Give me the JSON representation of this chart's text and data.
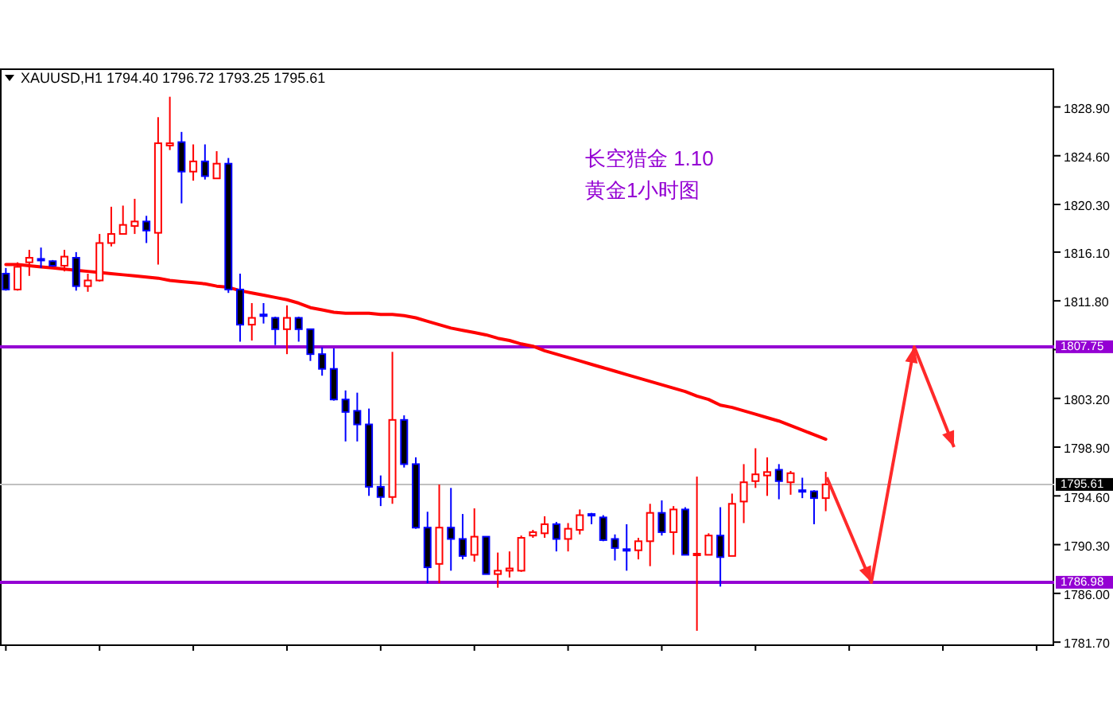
{
  "chart_data": {
    "type": "candlestick",
    "title": "XAUUSD,H1  1794.40 1796.72 1793.25 1795.61",
    "annotations": [
      "长空猎金  1.10",
      "黄金1小时图"
    ],
    "categories": [
      null,
      null,
      null,
      null,
      null,
      null,
      null,
      null,
      null,
      null,
      null,
      null,
      null,
      null,
      null,
      null,
      null,
      null,
      null,
      null,
      null,
      null,
      null,
      null,
      null,
      null,
      null,
      null,
      null,
      null,
      null,
      null,
      null,
      null,
      null,
      null,
      null,
      null,
      null,
      null,
      null,
      null,
      null,
      null,
      null,
      null,
      null,
      null,
      null,
      null,
      null,
      null,
      null,
      null,
      null,
      null,
      null,
      null,
      null,
      null,
      null,
      null,
      null,
      null,
      null,
      null,
      null,
      null,
      null,
      null,
      null,
      null,
      null,
      null,
      null,
      null,
      null,
      null,
      null,
      null,
      null,
      null,
      null,
      null,
      null,
      null,
      null,
      null,
      null,
      null
    ],
    "ohlc": [
      [
        1814.2,
        1814.7,
        1812.7,
        1812.8
      ],
      [
        1812.8,
        1815.2,
        1812.7,
        1814.8
      ],
      [
        1815.2,
        1816.3,
        1814.0,
        1815.6
      ],
      [
        1815.5,
        1816.5,
        1814.7,
        1815.4
      ],
      [
        1815.3,
        1815.4,
        1814.8,
        1814.9
      ],
      [
        1814.9,
        1816.3,
        1814.4,
        1815.7
      ],
      [
        1815.6,
        1816.1,
        1812.7,
        1813.1
      ],
      [
        1813.1,
        1814.2,
        1812.6,
        1813.6
      ],
      [
        1813.6,
        1817.7,
        1813.5,
        1816.9
      ],
      [
        1816.9,
        1820.1,
        1816.6,
        1817.7
      ],
      [
        1817.7,
        1820.2,
        1817.7,
        1818.5
      ],
      [
        1818.4,
        1820.8,
        1817.7,
        1818.8
      ],
      [
        1818.8,
        1819.3,
        1816.9,
        1818.0
      ],
      [
        1817.8,
        1828.0,
        1815.0,
        1825.7
      ],
      [
        1825.5,
        1829.8,
        1825.1,
        1825.7
      ],
      [
        1825.8,
        1826.7,
        1820.4,
        1823.2
      ],
      [
        1823.2,
        1825.6,
        1822.4,
        1824.1
      ],
      [
        1824.1,
        1825.6,
        1822.5,
        1822.8
      ],
      [
        1822.6,
        1825.0,
        1822.6,
        1823.9
      ],
      [
        1823.9,
        1824.4,
        1812.5,
        1812.8
      ],
      [
        1812.8,
        1814.2,
        1808.2,
        1809.7
      ],
      [
        1809.7,
        1811.6,
        1808.3,
        1810.3
      ],
      [
        1810.6,
        1811.6,
        1809.8,
        1810.5
      ],
      [
        1810.3,
        1810.4,
        1807.9,
        1809.3
      ],
      [
        1809.3,
        1811.4,
        1807.1,
        1810.3
      ],
      [
        1810.3,
        1810.4,
        1808.2,
        1809.3
      ],
      [
        1809.3,
        1809.3,
        1806.5,
        1807.1
      ],
      [
        1807.1,
        1807.7,
        1805.2,
        1805.8
      ],
      [
        1805.8,
        1807.6,
        1803.0,
        1803.1
      ],
      [
        1803.1,
        1803.9,
        1799.4,
        1802.0
      ],
      [
        1802.1,
        1803.7,
        1799.4,
        1800.9
      ],
      [
        1800.9,
        1802.3,
        1794.6,
        1795.4
      ],
      [
        1795.4,
        1796.4,
        1793.7,
        1794.5
      ],
      [
        1794.5,
        1807.3,
        1793.9,
        1801.3
      ],
      [
        1801.3,
        1801.7,
        1797.1,
        1797.4
      ],
      [
        1797.4,
        1798.0,
        1791.7,
        1791.8
      ],
      [
        1791.8,
        1793.2,
        1786.9,
        1788.3
      ],
      [
        1788.6,
        1795.6,
        1786.9,
        1791.8
      ],
      [
        1791.8,
        1795.3,
        1788.0,
        1790.8
      ],
      [
        1790.8,
        1793.0,
        1789.0,
        1789.3
      ],
      [
        1789.4,
        1793.5,
        1788.8,
        1791.0
      ],
      [
        1791.0,
        1791.0,
        1787.7,
        1787.7
      ],
      [
        1787.7,
        1789.6,
        1786.5,
        1788.0
      ],
      [
        1788.0,
        1789.7,
        1787.4,
        1788.2
      ],
      [
        1788.0,
        1791.1,
        1787.9,
        1790.9
      ],
      [
        1791.1,
        1791.6,
        1790.9,
        1791.4
      ],
      [
        1791.3,
        1792.8,
        1790.9,
        1792.1
      ],
      [
        1792.1,
        1792.3,
        1789.7,
        1790.8
      ],
      [
        1790.8,
        1792.2,
        1789.7,
        1791.7
      ],
      [
        1791.6,
        1793.4,
        1791.2,
        1792.9
      ],
      [
        1793.0,
        1793.1,
        1792.1,
        1792.9
      ],
      [
        1792.7,
        1792.9,
        1790.6,
        1790.7
      ],
      [
        1790.8,
        1791.2,
        1788.9,
        1790.0
      ],
      [
        1789.9,
        1792.1,
        1788.0,
        1789.8
      ],
      [
        1789.8,
        1790.9,
        1789.0,
        1790.6
      ],
      [
        1790.6,
        1793.9,
        1788.4,
        1793.1
      ],
      [
        1793.1,
        1794.2,
        1791.1,
        1791.4
      ],
      [
        1791.4,
        1793.7,
        1789.4,
        1793.4
      ],
      [
        1793.4,
        1793.6,
        1789.4,
        1789.4
      ],
      [
        1789.4,
        1796.3,
        1782.7,
        1789.5
      ],
      [
        1789.4,
        1791.3,
        1789.4,
        1791.1
      ],
      [
        1791.1,
        1793.6,
        1786.6,
        1789.2
      ],
      [
        1789.3,
        1794.8,
        1789.3,
        1793.9
      ],
      [
        1794.1,
        1797.4,
        1792.2,
        1795.8
      ],
      [
        1795.9,
        1798.8,
        1795.3,
        1796.5
      ],
      [
        1796.4,
        1798.0,
        1794.6,
        1796.7
      ],
      [
        1796.9,
        1797.4,
        1794.3,
        1795.9
      ],
      [
        1795.8,
        1796.8,
        1794.7,
        1796.6
      ],
      [
        1795.1,
        1796.2,
        1794.4,
        1795.0
      ],
      [
        1795.0,
        1795.1,
        1792.1,
        1794.4
      ],
      [
        1794.4,
        1796.72,
        1793.25,
        1795.61
      ],
      null,
      null,
      null,
      null,
      null,
      null,
      null,
      null,
      null,
      null,
      null,
      null,
      null,
      null,
      null,
      null,
      null,
      null,
      null
    ],
    "series": [
      {
        "type": "line",
        "color": "#ff0000",
        "values": [
          1815.0,
          1815.0,
          1814.9,
          1814.8,
          1814.7,
          1814.6,
          1814.5,
          1814.4,
          1814.3,
          1814.2,
          1814.1,
          1814.0,
          1813.9,
          1813.8,
          1813.6,
          1813.5,
          1813.4,
          1813.3,
          1813.1,
          1813.0,
          1812.7,
          1812.5,
          1812.3,
          1812.1,
          1811.9,
          1811.6,
          1811.2,
          1811.0,
          1810.8,
          1810.7,
          1810.7,
          1810.7,
          1810.6,
          1810.6,
          1810.5,
          1810.3,
          1810.0,
          1809.7,
          1809.4,
          1809.2,
          1809.0,
          1808.8,
          1808.5,
          1808.3,
          1808.0,
          1807.8,
          1807.4,
          1807.1,
          1806.8,
          1806.5,
          1806.2,
          1805.9,
          1805.6,
          1805.3,
          1805.0,
          1804.7,
          1804.4,
          1804.1,
          1803.8,
          1803.4,
          1803.1,
          1802.6,
          1802.4,
          1802.1,
          1801.8,
          1801.5,
          1801.2,
          1800.8,
          1800.4,
          1800.0,
          1799.6,
          null,
          null,
          null,
          null,
          null,
          null,
          null,
          null,
          null,
          null,
          null,
          null,
          null,
          null,
          null,
          null,
          null,
          null,
          null
        ]
      }
    ],
    "ylim": [
      1781.5,
      1832.3
    ],
    "yticks": [
      {
        "value": 1828.9,
        "label": "1828.90"
      },
      {
        "value": 1824.6,
        "label": "1824.60"
      },
      {
        "value": 1820.3,
        "label": "1820.30"
      },
      {
        "value": 1816.1,
        "label": "1816.10"
      },
      {
        "value": 1811.8,
        "label": "1811.80"
      },
      {
        "value": 1807.5,
        "label": null
      },
      {
        "value": 1803.2,
        "label": "1803.20"
      },
      {
        "value": 1798.9,
        "label": "1798.90"
      },
      {
        "value": 1794.6,
        "label": "1794.60"
      },
      {
        "value": 1790.3,
        "label": "1790.30"
      },
      {
        "value": 1786.0,
        "label": "1786.00"
      },
      {
        "value": 1781.7,
        "label": "1781.70"
      }
    ],
    "tick_labels": "y",
    "ref_lines": [
      {
        "axis": "y",
        "value": 1795.61,
        "label": "1795.61",
        "color": "#c0c0c0"
      },
      {
        "axis": "y",
        "value": 1807.75,
        "label": "1807.75",
        "color": "#9400d3"
      },
      {
        "axis": "y",
        "value": 1786.98,
        "label": "1786.98",
        "color": "#9400d3"
      }
    ]
  }
}
